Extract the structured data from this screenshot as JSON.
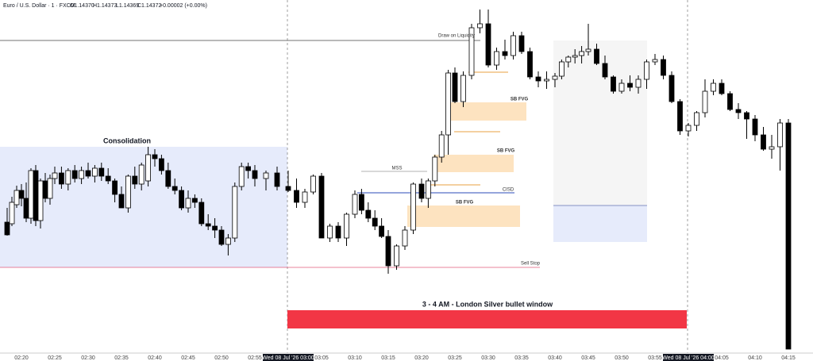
{
  "header": {
    "symbol": "Euro / U.S. Dollar · 1 · FXCM",
    "open": "O1.14370",
    "high": "H1.14373",
    "low": "L1.14369",
    "close": "C1.14372",
    "change": "+0.00002 (+0.00%)"
  },
  "annotations": {
    "draw_on_liquidity": "Draw on Liquidity",
    "consolidation": "Consolidation",
    "fvg_1": "SB FVG",
    "fvg_2": "SB FVG",
    "fvg_3": "SB FVG",
    "mss": "MSS",
    "cisd": "CISD",
    "sell_stop": "Sell Stop",
    "window": "3 - 4 AM - London Silver bullet window"
  },
  "chart_data": {
    "type": "candlestick",
    "up_color": "#ffffff",
    "down_color": "#000000",
    "ylim": [
      1.14055,
      1.145
    ],
    "categories": [
      null,
      null,
      null,
      "02:20",
      null,
      null,
      null,
      null,
      null,
      null,
      "02:25",
      null,
      null,
      null,
      null,
      "02:30",
      null,
      null,
      null,
      null,
      "02:35",
      null,
      null,
      null,
      null,
      "02:40",
      null,
      null,
      null,
      null,
      "02:45",
      null,
      null,
      null,
      null,
      "02:50",
      null,
      null,
      null,
      null,
      "02:55",
      null,
      null,
      "Wed 08 Jul '26  03:00",
      null,
      null,
      null,
      "03:05",
      null,
      null,
      null,
      "03:10",
      null,
      null,
      null,
      null,
      "03:15",
      null,
      null,
      null,
      "03:20",
      null,
      null,
      null,
      null,
      "03:25",
      null,
      null,
      null,
      "03:30",
      null,
      null,
      null,
      "03:35",
      null,
      null,
      null,
      "03:40",
      null,
      null,
      null,
      null,
      "03:45",
      null,
      null,
      null,
      "03:50",
      null,
      null,
      null,
      "03:55",
      null,
      null,
      null,
      "Wed 08 Jul '26  04:00",
      null,
      null,
      null,
      "04:05",
      null,
      null,
      null,
      "04:10",
      null,
      null,
      null,
      "04:15"
    ],
    "open": [
      1.1422,
      1.14218,
      1.14242,
      1.1426,
      1.1425,
      1.14225,
      1.14285,
      1.14222,
      1.14272,
      1.1425,
      1.14275,
      1.14282,
      1.14268,
      1.14285,
      1.14275,
      1.14285,
      1.14278,
      1.14288,
      1.14278,
      1.14272,
      1.14255,
      1.14238,
      1.14278,
      1.14268,
      1.14272,
      1.14305,
      1.143,
      1.14285,
      1.14265,
      1.1426,
      1.14238,
      1.1425,
      1.14245,
      1.14218,
      1.14215,
      1.1421,
      1.14192,
      1.142,
      1.14265,
      1.1429,
      1.14285,
      1.14275,
      1.14282,
      1.14265,
      1.1426,
      1.14245,
      1.14258,
      1.14278,
      1.142,
      1.14215,
      1.142,
      1.1423,
      1.14255,
      1.14235,
      1.14225,
      1.14215,
      1.14202,
      1.14165,
      1.1419,
      1.1421,
      1.14268,
      1.1425,
      1.14272,
      1.14302,
      1.1433,
      1.14408,
      1.14372,
      1.14405,
      1.14465,
      1.1447,
      1.14418,
      1.14435,
      1.1443,
      1.14455,
      1.14435,
      1.14403,
      1.14398,
      1.144,
      1.14404,
      1.14422,
      1.14428,
      1.1443,
      1.14435,
      1.14438,
      1.1442,
      1.14403,
      1.14385,
      1.14395,
      1.1439,
      1.144,
      1.14422,
      1.14425,
      1.14405,
      1.14372,
      1.14335,
      1.14342,
      1.14358,
      1.14385,
      1.14395,
      1.14382,
      1.14362,
      1.14358,
      1.1435,
      1.1433,
      1.14312,
      1.14315,
      1.14345
    ],
    "high": [
      1.14238,
      1.14252,
      1.14266,
      1.14268,
      1.1427,
      1.14288,
      1.14292,
      1.14275,
      1.14282,
      1.1428,
      1.1429,
      1.1429,
      1.14288,
      1.14292,
      1.1429,
      1.14295,
      1.14292,
      1.14295,
      1.14288,
      1.14275,
      1.14265,
      1.1428,
      1.1429,
      1.14295,
      1.14315,
      1.14312,
      1.14305,
      1.14295,
      1.14275,
      1.14265,
      1.1426,
      1.14255,
      1.1425,
      1.1423,
      1.14225,
      1.14215,
      1.14205,
      1.1427,
      1.14295,
      1.14295,
      1.14292,
      1.14285,
      1.1429,
      1.14285,
      1.14275,
      1.14262,
      1.1428,
      1.14282,
      1.14218,
      1.1422,
      1.14232,
      1.1426,
      1.14262,
      1.14245,
      1.14235,
      1.14225,
      1.1421,
      1.14192,
      1.14215,
      1.1427,
      1.14275,
      1.14275,
      1.14305,
      1.14335,
      1.14412,
      1.14415,
      1.1441,
      1.1447,
      1.14488,
      1.14488,
      1.1444,
      1.1445,
      1.1446,
      1.1446,
      1.1444,
      1.1441,
      1.1441,
      1.14408,
      1.14425,
      1.1443,
      1.14438,
      1.14442,
      1.1447,
      1.14445,
      1.1443,
      1.14405,
      1.144,
      1.14405,
      1.14405,
      1.14425,
      1.14432,
      1.1443,
      1.1441,
      1.14375,
      1.14345,
      1.1436,
      1.144,
      1.144,
      1.144,
      1.14385,
      1.1437,
      1.1436,
      1.14355,
      1.1434,
      1.1433,
      1.1435,
      1.1435
    ],
    "low": [
      1.14203,
      1.14215,
      1.14238,
      1.1424,
      1.1422,
      1.14218,
      1.14215,
      1.14212,
      1.14245,
      1.14242,
      1.14268,
      1.14262,
      1.1426,
      1.1427,
      1.14268,
      1.14275,
      1.1427,
      1.14272,
      1.14268,
      1.14245,
      1.14238,
      1.14232,
      1.14262,
      1.1426,
      1.14265,
      1.1429,
      1.1428,
      1.14262,
      1.14255,
      1.14235,
      1.14232,
      1.14238,
      1.14215,
      1.1421,
      1.142,
      1.1419,
      1.14178,
      1.14195,
      1.1426,
      1.14275,
      1.14265,
      1.1426,
      1.1426,
      1.14258,
      1.14238,
      1.14238,
      1.14255,
      1.142,
      1.14195,
      1.14195,
      1.1419,
      1.14225,
      1.1423,
      1.1422,
      1.1421,
      1.142,
      1.14155,
      1.1416,
      1.14185,
      1.14205,
      1.14245,
      1.14238,
      1.14265,
      1.14295,
      1.14305,
      1.1437,
      1.14365,
      1.144,
      1.14458,
      1.14415,
      1.14412,
      1.14425,
      1.14425,
      1.14432,
      1.144,
      1.1439,
      1.14388,
      1.1439,
      1.144,
      1.14415,
      1.1442,
      1.1442,
      1.1443,
      1.14418,
      1.144,
      1.14382,
      1.14382,
      1.14385,
      1.14382,
      1.14388,
      1.14418,
      1.144,
      1.1437,
      1.1433,
      1.14328,
      1.14335,
      1.14352,
      1.1438,
      1.1438,
      1.1436,
      1.1435,
      1.14325,
      1.14322,
      1.1431,
      1.143,
      1.14285,
      1.1406
    ],
    "close": [
      1.14204,
      1.14245,
      1.1426,
      1.1425,
      1.14225,
      1.14285,
      1.14222,
      1.14272,
      1.1425,
      1.14275,
      1.14282,
      1.14268,
      1.14285,
      1.14275,
      1.14285,
      1.14278,
      1.14288,
      1.14278,
      1.14272,
      1.14255,
      1.14238,
      1.14278,
      1.14268,
      1.14292,
      1.14305,
      1.143,
      1.14285,
      1.14265,
      1.1426,
      1.14238,
      1.1425,
      1.14245,
      1.14218,
      1.14215,
      1.1421,
      1.14192,
      1.142,
      1.14265,
      1.1429,
      1.14285,
      1.14275,
      1.14282,
      1.14265,
      1.1426,
      1.14245,
      1.14258,
      1.14278,
      1.142,
      1.14215,
      1.142,
      1.1423,
      1.14255,
      1.14235,
      1.14225,
      1.14215,
      1.14202,
      1.14165,
      1.1419,
      1.1421,
      1.14268,
      1.1425,
      1.14272,
      1.14302,
      1.1433,
      1.14408,
      1.14372,
      1.14405,
      1.14465,
      1.1447,
      1.14418,
      1.14435,
      1.1443,
      1.14455,
      1.14435,
      1.14403,
      1.14398,
      1.144,
      1.14404,
      1.14422,
      1.14428,
      1.1443,
      1.14435,
      1.14438,
      1.1442,
      1.14403,
      1.14385,
      1.14395,
      1.1439,
      1.144,
      1.14422,
      1.14425,
      1.14405,
      1.14372,
      1.14335,
      1.14342,
      1.14358,
      1.14385,
      1.14395,
      1.14382,
      1.14362,
      1.14358,
      1.1435,
      1.1433,
      1.14312,
      1.14315,
      1.14345,
      1.1406
    ]
  }
}
